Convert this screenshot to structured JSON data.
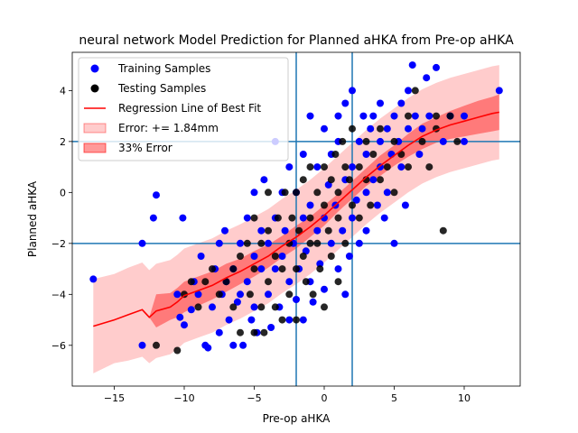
{
  "chart_data": {
    "type": "scatter",
    "title": "neural network Model Prediction for Planned aHKA from Pre-op aHKA",
    "xlabel": "Pre-op aHKA",
    "ylabel": "Planned aHKA",
    "xlim": [
      -18,
      14
    ],
    "ylim": [
      -7.6,
      5.5
    ],
    "x_ticks": [
      -15,
      -10,
      -5,
      0,
      5,
      10
    ],
    "x_tick_labels": [
      "−15",
      "−10",
      "−5",
      "0",
      "5",
      "10"
    ],
    "y_ticks": [
      -6,
      -4,
      -2,
      0,
      2,
      4
    ],
    "y_tick_labels": [
      "−6",
      "−4",
      "−2",
      "0",
      "2",
      "4"
    ],
    "reference_lines": {
      "vertical": [
        -2,
        2
      ],
      "horizontal": [
        -2,
        2
      ],
      "color": "#1f77b4"
    },
    "legend": {
      "position": "top-left",
      "entries": [
        {
          "label": "Training Samples",
          "kind": "marker",
          "color": "#0000ff"
        },
        {
          "label": "Testing Samples",
          "kind": "marker",
          "color": "#000000"
        },
        {
          "label": "Regression Line of Best Fit",
          "kind": "line",
          "color": "#ff0000"
        },
        {
          "label": "Error: += 1.84mm",
          "kind": "patch",
          "color": "#ff0000",
          "alpha": 0.2
        },
        {
          "label": "33% Error",
          "kind": "patch",
          "color": "#ff0000",
          "alpha": 0.4
        }
      ]
    },
    "series": [
      {
        "name": "Training Samples",
        "kind": "scatter",
        "color": "#0000ff",
        "points": [
          [
            -16.5,
            -3.4
          ],
          [
            -13,
            -6
          ],
          [
            -13,
            -2
          ],
          [
            -12,
            -0.1
          ],
          [
            -12.2,
            -1
          ],
          [
            -10.5,
            -4
          ],
          [
            -10.3,
            -4.9
          ],
          [
            -10,
            -5.2
          ],
          [
            -10.1,
            -1
          ],
          [
            -9.5,
            -4.6
          ],
          [
            -9.3,
            -3.5
          ],
          [
            -9,
            -4
          ],
          [
            -8.8,
            -2.5
          ],
          [
            -8.5,
            -6
          ],
          [
            -8.3,
            -6.1
          ],
          [
            -8,
            -4.5
          ],
          [
            -7.8,
            -3
          ],
          [
            -7.5,
            -5.5
          ],
          [
            -7.3,
            -4
          ],
          [
            -7.1,
            -1.5
          ],
          [
            -7,
            -3.5
          ],
          [
            -7.5,
            -2
          ],
          [
            -6.8,
            -5
          ],
          [
            -6.5,
            -3
          ],
          [
            -6.5,
            -6
          ],
          [
            -6.2,
            -4.3
          ],
          [
            -6,
            -4
          ],
          [
            -5.8,
            -6
          ],
          [
            -6,
            -2
          ],
          [
            -5.5,
            -3.5
          ],
          [
            -5.5,
            -1
          ],
          [
            -5.2,
            -5
          ],
          [
            -5,
            -4.5
          ],
          [
            -5,
            -2.5
          ],
          [
            -5,
            0
          ],
          [
            -4.8,
            -5.5
          ],
          [
            -4.5,
            -3
          ],
          [
            -4.5,
            -1.5
          ],
          [
            -4.3,
            0.5
          ],
          [
            -4,
            -4
          ],
          [
            -4,
            -2
          ],
          [
            -3.8,
            -5.3
          ],
          [
            -3.5,
            -3
          ],
          [
            -3.5,
            -1
          ],
          [
            -3.5,
            2
          ],
          [
            -3.2,
            -4.5
          ],
          [
            -3,
            -2.5
          ],
          [
            -3,
            0
          ],
          [
            -2.8,
            -1.5
          ],
          [
            -2.5,
            -3.5
          ],
          [
            -2.5,
            -5
          ],
          [
            -2.5,
            1
          ],
          [
            -2.2,
            -2
          ],
          [
            -2,
            -4.2
          ],
          [
            -2,
            0
          ],
          [
            -1.8,
            -3
          ],
          [
            -1.5,
            -1
          ],
          [
            -1.5,
            -5
          ],
          [
            -1.5,
            1.5
          ],
          [
            -1.3,
            -2.3
          ],
          [
            -1,
            -0.5
          ],
          [
            -1,
            -3.5
          ],
          [
            -1,
            3
          ],
          [
            -0.8,
            -4.3
          ],
          [
            -0.5,
            -1.5
          ],
          [
            -0.5,
            1
          ],
          [
            -0.3,
            -2.8
          ],
          [
            0,
            -1
          ],
          [
            0,
            2.5
          ],
          [
            0,
            -3.8
          ],
          [
            0.3,
            0.3
          ],
          [
            0.5,
            -2
          ],
          [
            0.5,
            1.5
          ],
          [
            0.8,
            -0.5
          ],
          [
            1,
            -3
          ],
          [
            1,
            2
          ],
          [
            1,
            3
          ],
          [
            1.3,
            -1.5
          ],
          [
            1.5,
            0.5
          ],
          [
            1.5,
            -4
          ],
          [
            1.5,
            3.5
          ],
          [
            1.8,
            -2.5
          ],
          [
            2,
            1
          ],
          [
            2,
            -1
          ],
          [
            2,
            4
          ],
          [
            2.3,
            -0.3
          ],
          [
            2.5,
            2
          ],
          [
            2.5,
            -2
          ],
          [
            2.8,
            3
          ],
          [
            3,
            0
          ],
          [
            3,
            1.5
          ],
          [
            3,
            -1.5
          ],
          [
            3.3,
            2.5
          ],
          [
            3.5,
            0.5
          ],
          [
            3.5,
            3
          ],
          [
            3.8,
            -0.5
          ],
          [
            4,
            1
          ],
          [
            4,
            2
          ],
          [
            4,
            3.5
          ],
          [
            4.3,
            -1
          ],
          [
            4.5,
            2.5
          ],
          [
            4.5,
            0
          ],
          [
            4.8,
            1.5
          ],
          [
            5,
            3
          ],
          [
            5,
            -2
          ],
          [
            5.3,
            2
          ],
          [
            5.5,
            1
          ],
          [
            5.5,
            3.5
          ],
          [
            5.8,
            -0.5
          ],
          [
            6,
            2.5
          ],
          [
            6,
            4
          ],
          [
            6.3,
            5
          ],
          [
            6.5,
            3
          ],
          [
            6.8,
            1.5
          ],
          [
            7,
            2.5
          ],
          [
            7.3,
            4.5
          ],
          [
            7.5,
            3
          ],
          [
            8,
            4.9
          ],
          [
            8.5,
            2
          ],
          [
            9,
            3
          ],
          [
            10,
            2
          ],
          [
            10,
            3
          ],
          [
            12.5,
            4
          ]
        ]
      },
      {
        "name": "Testing Samples",
        "kind": "scatter",
        "color": "#000000",
        "points": [
          [
            -12,
            -6
          ],
          [
            -10.5,
            -6.2
          ],
          [
            -10,
            -4
          ],
          [
            -9.5,
            -3.5
          ],
          [
            -9,
            -4.5
          ],
          [
            -8.5,
            -3.5
          ],
          [
            -8,
            -3
          ],
          [
            -7.5,
            -4
          ],
          [
            -7,
            -3.5
          ],
          [
            -6.5,
            -4.5
          ],
          [
            -6.5,
            -3
          ],
          [
            -6,
            -2.5
          ],
          [
            -6,
            -5.5
          ],
          [
            -5.5,
            -2
          ],
          [
            -5.3,
            -4
          ],
          [
            -5,
            -1
          ],
          [
            -5,
            -3
          ],
          [
            -5,
            -5.5
          ],
          [
            -4.5,
            -2
          ],
          [
            -4.5,
            -4.5
          ],
          [
            -4.3,
            -5.5
          ],
          [
            -4,
            -1.5
          ],
          [
            -4,
            -3.5
          ],
          [
            -4,
            0
          ],
          [
            -3.5,
            -2.5
          ],
          [
            -3.5,
            -4.5
          ],
          [
            -3.3,
            -1
          ],
          [
            -3,
            -3
          ],
          [
            -3,
            -5
          ],
          [
            -2.8,
            0
          ],
          [
            -2.5,
            -2
          ],
          [
            -2.5,
            -4
          ],
          [
            -2.3,
            -1
          ],
          [
            -2,
            -3
          ],
          [
            -2,
            0
          ],
          [
            -2,
            -5
          ],
          [
            -1.8,
            -1.5
          ],
          [
            -1.5,
            -2.5
          ],
          [
            -1.5,
            0.5
          ],
          [
            -1.3,
            -3.5
          ],
          [
            -1,
            -1
          ],
          [
            -1,
            -2
          ],
          [
            -1,
            1
          ],
          [
            -0.8,
            -4
          ],
          [
            -0.5,
            0
          ],
          [
            -0.5,
            -2
          ],
          [
            -0.3,
            -3
          ],
          [
            0,
            -0.5
          ],
          [
            0,
            1
          ],
          [
            0,
            -4.5
          ],
          [
            0.3,
            -1.5
          ],
          [
            0.5,
            0.5
          ],
          [
            0.5,
            -2.5
          ],
          [
            0.8,
            1.5
          ],
          [
            1,
            -1
          ],
          [
            1,
            0
          ],
          [
            1,
            -3.5
          ],
          [
            1.3,
            2
          ],
          [
            1.5,
            -2
          ],
          [
            1.5,
            1
          ],
          [
            1.8,
            0.5
          ],
          [
            2,
            -0.5
          ],
          [
            2,
            2.5
          ],
          [
            2.5,
            1
          ],
          [
            2.5,
            -1
          ],
          [
            3,
            2
          ],
          [
            3,
            0.5
          ],
          [
            3.3,
            -0.5
          ],
          [
            3.5,
            1.5
          ],
          [
            4,
            0.5
          ],
          [
            4,
            2.5
          ],
          [
            4.5,
            1
          ],
          [
            5,
            2
          ],
          [
            5,
            0
          ],
          [
            5.5,
            1.5
          ],
          [
            6,
            3
          ],
          [
            6,
            1
          ],
          [
            6.5,
            4
          ],
          [
            7,
            2
          ],
          [
            7.5,
            1
          ],
          [
            8,
            3
          ],
          [
            8.5,
            -1.5
          ],
          [
            8,
            2.5
          ],
          [
            9,
            3
          ],
          [
            9.5,
            2
          ]
        ]
      },
      {
        "name": "Regression Line of Best Fit",
        "kind": "line",
        "color": "#ff0000",
        "x": [
          -16.5,
          -15,
          -14,
          -13,
          -12.5,
          -12,
          -11,
          -10.5,
          -10,
          -9,
          -8,
          -7,
          -6,
          -5,
          -4,
          -3,
          -2,
          -1,
          0,
          1,
          2,
          3,
          4,
          5,
          6,
          7,
          8,
          9,
          10,
          11,
          12,
          12.5
        ],
        "y": [
          -5.25,
          -5.0,
          -4.8,
          -4.6,
          -4.9,
          -4.65,
          -4.5,
          -4.3,
          -4.05,
          -3.85,
          -3.65,
          -3.35,
          -3.1,
          -2.8,
          -2.5,
          -2.1,
          -1.75,
          -1.35,
          -0.9,
          -0.4,
          0.1,
          0.6,
          1.05,
          1.45,
          1.85,
          2.2,
          2.45,
          2.65,
          2.8,
          2.95,
          3.1,
          3.15
        ]
      },
      {
        "name": "Error: += 1.84mm",
        "kind": "band",
        "color": "#ff0000",
        "alpha": 0.2,
        "x": [
          -16.5,
          -15,
          -14,
          -13,
          -12.5,
          -12,
          -11,
          -10.5,
          -10,
          -9,
          -8,
          -7,
          -6,
          -5,
          -4,
          -3,
          -2,
          -1,
          0,
          1,
          2,
          3,
          4,
          5,
          6,
          7,
          8,
          9,
          10,
          11,
          12,
          12.5
        ],
        "lower": [
          -7.1,
          -6.7,
          -6.6,
          -6.45,
          -6.7,
          -6.5,
          -6.35,
          -6.15,
          -5.9,
          -5.7,
          -5.5,
          -5.2,
          -4.95,
          -4.65,
          -4.35,
          -3.95,
          -3.6,
          -3.2,
          -2.75,
          -2.25,
          -1.75,
          -1.25,
          -0.8,
          -0.4,
          0,
          0.35,
          0.6,
          0.8,
          0.95,
          1.1,
          1.25,
          1.3
        ],
        "upper": [
          -3.4,
          -3.2,
          -2.95,
          -2.75,
          -3.05,
          -2.8,
          -2.65,
          -2.45,
          -2.2,
          -2.0,
          -1.8,
          -1.5,
          -1.25,
          -0.95,
          -0.65,
          -0.25,
          0.1,
          0.5,
          0.95,
          1.45,
          1.95,
          2.45,
          2.9,
          3.3,
          3.7,
          4.05,
          4.3,
          4.5,
          4.65,
          4.8,
          4.95,
          5.0
        ]
      },
      {
        "name": "33% Error",
        "kind": "band",
        "color": "#ff0000",
        "alpha": 0.4,
        "x": [
          -16.5,
          -15,
          -14,
          -13,
          -12.5,
          -12,
          -11,
          -10.5,
          -10,
          -9,
          -8,
          -7,
          -6,
          -5,
          -4,
          -3,
          -2,
          -1,
          0,
          1,
          2,
          3,
          4,
          5,
          6,
          7,
          8,
          9,
          10,
          11,
          12,
          12.5
        ],
        "lower": [
          -5.25,
          -5.0,
          -4.8,
          -4.6,
          -4.9,
          -5.3,
          -5.0,
          -4.9,
          -4.7,
          -4.45,
          -4.2,
          -3.9,
          -3.6,
          -3.3,
          -2.95,
          -2.55,
          -2.2,
          -1.75,
          -1.3,
          -0.75,
          -0.25,
          0.25,
          0.65,
          1.05,
          1.4,
          1.7,
          1.95,
          2.1,
          2.2,
          2.3,
          2.4,
          2.45
        ],
        "upper": [
          -5.25,
          -5.0,
          -4.8,
          -4.6,
          -4.9,
          -4.0,
          -3.95,
          -3.75,
          -3.5,
          -3.3,
          -3.1,
          -2.8,
          -2.6,
          -2.3,
          -2.05,
          -1.7,
          -1.3,
          -0.95,
          -0.5,
          -0.05,
          0.45,
          0.95,
          1.45,
          1.85,
          2.3,
          2.7,
          2.95,
          3.2,
          3.4,
          3.6,
          3.75,
          3.85
        ]
      }
    ]
  }
}
